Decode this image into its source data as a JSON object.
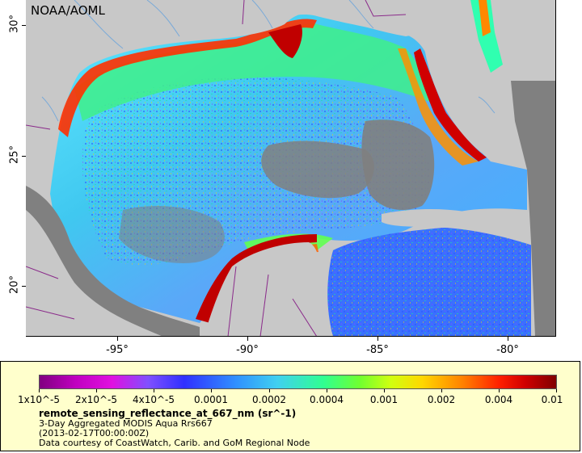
{
  "map": {
    "credit": "NOAA/AOML",
    "lat_labels": [
      "30°",
      "25°",
      "20°"
    ],
    "lon_labels": [
      "-95°",
      "-90°",
      "-85°",
      "-80°"
    ],
    "colors": {
      "land": "#c8c8c8",
      "dark_land": "#808080",
      "border": "#8a2a8a",
      "river": "#7aaad8"
    }
  },
  "legend": {
    "ticks": [
      "1x10^-5",
      "2x10^-5",
      "4x10^-5",
      "0.0001",
      "0.0002",
      "0.0004",
      "0.001",
      "0.002",
      "0.004",
      "0.01"
    ],
    "variable": "remote_sensing_reflectance_at_667_nm (sr^-1)",
    "line1": "3-Day Aggregated MODIS Aqua Rrs667",
    "line2": "(2013-02-17T00:00:00Z)",
    "line3": "Data courtesy of CoastWatch, Carib. and GoM Regional Node"
  }
}
